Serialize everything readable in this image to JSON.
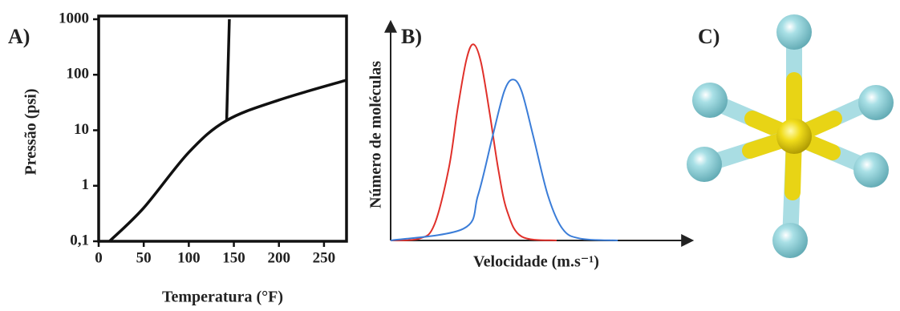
{
  "chart_data": [
    {
      "type": "line",
      "panel": "A)",
      "xlabel": "Temperatura (°F)",
      "ylabel": "Pressão (psi)",
      "xlim": [
        0,
        275
      ],
      "xticks": [
        0,
        50,
        100,
        150,
        200,
        250
      ],
      "ylim": [
        0.1,
        1000
      ],
      "ylog": true,
      "yticks": [
        {
          "value": 0.1,
          "label": "0,1"
        },
        1,
        10,
        100,
        1000
      ],
      "series": [
        {
          "color": "#111111",
          "x": [
            12,
            50,
            100,
            142,
            200,
            275
          ],
          "values": [
            0.1,
            0.4,
            4,
            15,
            35,
            80
          ]
        },
        {
          "color": "#111111",
          "x": [
            142,
            145
          ],
          "values": [
            15,
            1000
          ]
        }
      ]
    },
    {
      "type": "line",
      "panel": "B)",
      "xlabel": "Velocidade (m.s⁻¹)",
      "ylabel": "Número de moléculas",
      "xlim": [
        0,
        10
      ],
      "ylim": [
        0,
        1.05
      ],
      "series": [
        {
          "color": "#e0302a",
          "x": [
            0,
            1,
            1.5,
            2,
            2.3,
            2.6,
            2.84,
            3.1,
            3.4,
            3.7,
            4,
            4.5,
            5.7
          ],
          "values": [
            0,
            0.01,
            0.08,
            0.37,
            0.67,
            0.92,
            1,
            0.91,
            0.65,
            0.36,
            0.15,
            0.02,
            0
          ]
        },
        {
          "color": "#3b7dd8",
          "x": [
            0,
            2.5,
            3,
            3.5,
            3.9,
            4.2,
            4.5,
            4.9,
            5.4,
            5.9,
            6.5,
            7.8
          ],
          "values": [
            0,
            0.06,
            0.23,
            0.53,
            0.76,
            0.82,
            0.76,
            0.53,
            0.23,
            0.06,
            0.01,
            0
          ]
        }
      ]
    }
  ],
  "illustration": {
    "label": "C)"
  }
}
